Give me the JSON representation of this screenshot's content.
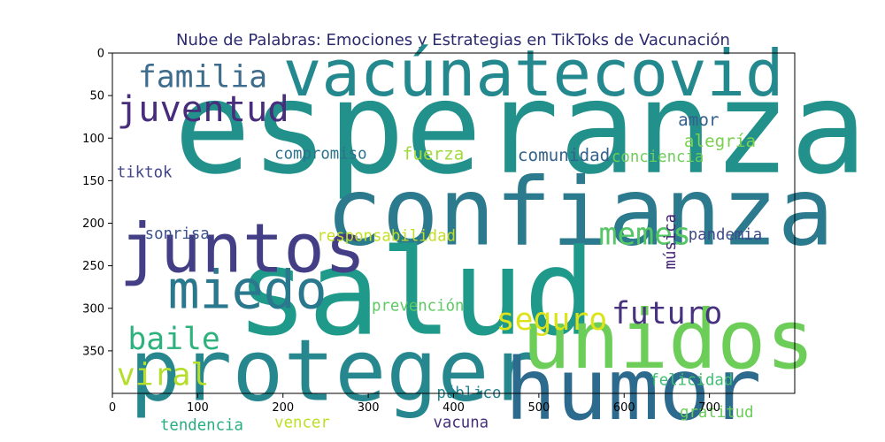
{
  "chart_data": {
    "type": "wordcloud",
    "title": "Nube de Palabras: Emociones y Estrategias en TikToks de Vacunación",
    "x_ticks": [
      "0",
      "100",
      "200",
      "300",
      "400",
      "500",
      "600",
      "700"
    ],
    "y_ticks": [
      "0",
      "50",
      "100",
      "150",
      "200",
      "250",
      "300",
      "350"
    ],
    "xlim": [
      0,
      800
    ],
    "ylim": [
      0,
      400
    ],
    "grid": false,
    "words": [
      {
        "text": "esperanza",
        "x": 72,
        "y": 140,
        "size": 150,
        "color": "#23918b"
      },
      {
        "text": "vacúnatecovid",
        "x": 200,
        "y": 50,
        "size": 75,
        "color": "#23898e"
      },
      {
        "text": "confianza",
        "x": 250,
        "y": 225,
        "size": 110,
        "color": "#2b7a8e"
      },
      {
        "text": "salud",
        "x": 145,
        "y": 330,
        "size": 140,
        "color": "#1f9a8a"
      },
      {
        "text": "proteger",
        "x": 20,
        "y": 408,
        "size": 100,
        "color": "#27878e"
      },
      {
        "text": "humor",
        "x": 460,
        "y": 430,
        "size": 100,
        "color": "#2d6b8e"
      },
      {
        "text": "unidos",
        "x": 480,
        "y": 370,
        "size": 95,
        "color": "#6dcd59"
      },
      {
        "text": "juntos",
        "x": 8,
        "y": 257,
        "size": 80,
        "color": "#433e85"
      },
      {
        "text": "miedo",
        "x": 65,
        "y": 300,
        "size": 62,
        "color": "#2a788e"
      },
      {
        "text": "familia",
        "x": 30,
        "y": 40,
        "size": 36,
        "color": "#3e6c8c"
      },
      {
        "text": "juventud",
        "x": 5,
        "y": 80,
        "size": 42,
        "color": "#472d7b"
      },
      {
        "text": "memes",
        "x": 570,
        "y": 225,
        "size": 36,
        "color": "#56c566"
      },
      {
        "text": "seguro",
        "x": 450,
        "y": 325,
        "size": 36,
        "color": "#dce319"
      },
      {
        "text": "futuro",
        "x": 585,
        "y": 318,
        "size": 36,
        "color": "#46327e"
      },
      {
        "text": "baile",
        "x": 18,
        "y": 348,
        "size": 36,
        "color": "#2db27d"
      },
      {
        "text": "viral",
        "x": 5,
        "y": 390,
        "size": 36,
        "color": "#b5de2b"
      },
      {
        "text": "amor",
        "x": 663,
        "y": 85,
        "size": 20,
        "color": "#35608d"
      },
      {
        "text": "alegría",
        "x": 670,
        "y": 110,
        "size": 20,
        "color": "#7ad151"
      },
      {
        "text": "compromiso",
        "x": 190,
        "y": 124,
        "size": 18,
        "color": "#2c728e"
      },
      {
        "text": "fuerza",
        "x": 340,
        "y": 125,
        "size": 20,
        "color": "#a0da39"
      },
      {
        "text": "comunidad",
        "x": 475,
        "y": 127,
        "size": 20,
        "color": "#33638d"
      },
      {
        "text": "conciencia",
        "x": 585,
        "y": 128,
        "size": 18,
        "color": "#6ccd5a"
      },
      {
        "text": "tiktok",
        "x": 5,
        "y": 146,
        "size": 18,
        "color": "#414487"
      },
      {
        "text": "sonrisa",
        "x": 38,
        "y": 218,
        "size": 18,
        "color": "#3b528b"
      },
      {
        "text": "responsabilidad",
        "x": 240,
        "y": 221,
        "size": 18,
        "color": "#c2df23"
      },
      {
        "text": "pandemia",
        "x": 675,
        "y": 219,
        "size": 18,
        "color": "#3e4989"
      },
      {
        "text": "prevención",
        "x": 304,
        "y": 303,
        "size": 18,
        "color": "#5ec962"
      },
      {
        "text": "felicidad",
        "x": 630,
        "y": 390,
        "size": 18,
        "color": "#40bd72"
      },
      {
        "text": "público",
        "x": 380,
        "y": 405,
        "size": 18,
        "color": "#26828e"
      },
      {
        "text": "gratitud",
        "x": 665,
        "y": 428,
        "size": 18,
        "color": "#6ccd5a"
      },
      {
        "text": "tendencia",
        "x": 56,
        "y": 443,
        "size": 18,
        "color": "#27ad81"
      },
      {
        "text": "vencer",
        "x": 190,
        "y": 440,
        "size": 18,
        "color": "#bddf26"
      },
      {
        "text": "vacuna",
        "x": 376,
        "y": 440,
        "size": 18,
        "color": "#472f7d"
      }
    ],
    "vertical_words": [
      {
        "text": "música",
        "x": 660,
        "y": 254,
        "size": 18,
        "color": "#482677"
      }
    ]
  }
}
